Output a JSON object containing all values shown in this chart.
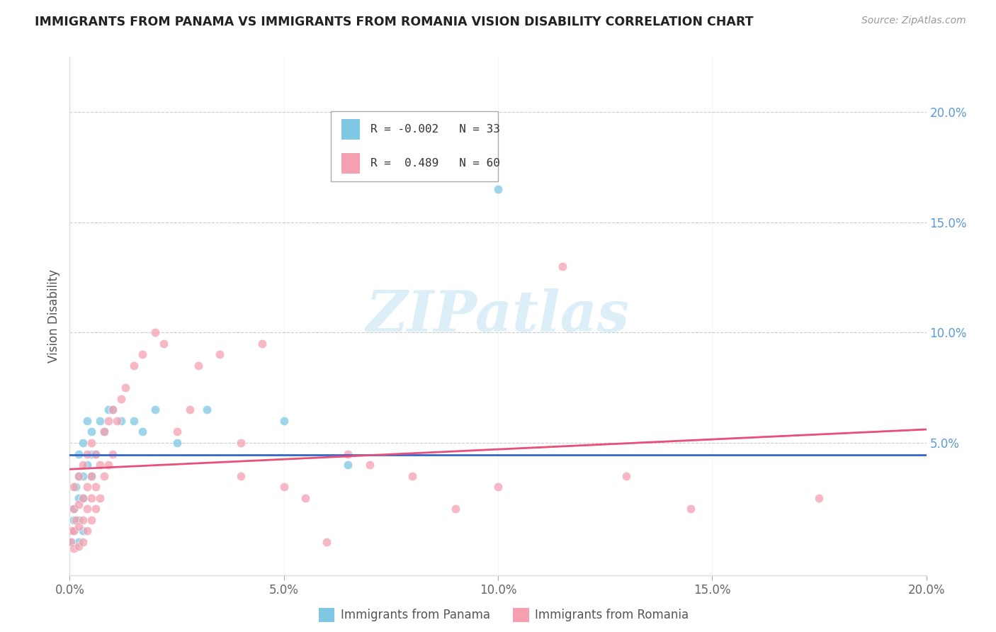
{
  "title": "IMMIGRANTS FROM PANAMA VS IMMIGRANTS FROM ROMANIA VISION DISABILITY CORRELATION CHART",
  "source": "Source: ZipAtlas.com",
  "ylabel": "Vision Disability",
  "xlim": [
    0.0,
    0.2
  ],
  "ylim": [
    -0.01,
    0.225
  ],
  "x_ticks": [
    0.0,
    0.05,
    0.1,
    0.15,
    0.2
  ],
  "x_tick_labels": [
    "0.0%",
    "5.0%",
    "10.0%",
    "15.0%",
    "20.0%"
  ],
  "y_ticks_right": [
    0.0,
    0.05,
    0.1,
    0.15,
    0.2
  ],
  "y_tick_labels_right": [
    "",
    "5.0%",
    "10.0%",
    "15.0%",
    "20.0%"
  ],
  "legend_entry1": "R = -0.002   N = 33",
  "legend_entry2": "R =  0.489   N = 60",
  "legend_label1": "Immigrants from Panama",
  "legend_label2": "Immigrants from Romania",
  "color_panama": "#7ec8e3",
  "color_romania": "#f4a0b0",
  "color_panama_line": "#3366cc",
  "color_romania_line": "#e8507a",
  "watermark": "ZIPatlas",
  "panama_R": -0.002,
  "romania_R": 0.489,
  "panama_x": [
    0.0005,
    0.001,
    0.001,
    0.001,
    0.0015,
    0.002,
    0.002,
    0.002,
    0.002,
    0.002,
    0.003,
    0.003,
    0.003,
    0.003,
    0.004,
    0.004,
    0.005,
    0.005,
    0.005,
    0.006,
    0.007,
    0.008,
    0.009,
    0.01,
    0.012,
    0.015,
    0.017,
    0.02,
    0.025,
    0.032,
    0.05,
    0.065,
    0.1
  ],
  "panama_y": [
    0.005,
    0.01,
    0.015,
    0.02,
    0.03,
    0.005,
    0.015,
    0.025,
    0.035,
    0.045,
    0.01,
    0.025,
    0.035,
    0.05,
    0.04,
    0.06,
    0.035,
    0.045,
    0.055,
    0.045,
    0.06,
    0.055,
    0.065,
    0.065,
    0.06,
    0.06,
    0.055,
    0.065,
    0.05,
    0.065,
    0.06,
    0.04,
    0.165
  ],
  "romania_x": [
    0.0003,
    0.0005,
    0.001,
    0.001,
    0.001,
    0.001,
    0.0015,
    0.002,
    0.002,
    0.002,
    0.002,
    0.003,
    0.003,
    0.003,
    0.003,
    0.004,
    0.004,
    0.004,
    0.004,
    0.005,
    0.005,
    0.005,
    0.005,
    0.006,
    0.006,
    0.006,
    0.007,
    0.007,
    0.008,
    0.008,
    0.009,
    0.009,
    0.01,
    0.01,
    0.011,
    0.012,
    0.013,
    0.015,
    0.017,
    0.02,
    0.022,
    0.025,
    0.028,
    0.03,
    0.035,
    0.04,
    0.04,
    0.045,
    0.05,
    0.055,
    0.06,
    0.065,
    0.07,
    0.08,
    0.09,
    0.1,
    0.115,
    0.13,
    0.145,
    0.175
  ],
  "romania_y": [
    0.005,
    0.01,
    0.002,
    0.01,
    0.02,
    0.03,
    0.015,
    0.003,
    0.012,
    0.022,
    0.035,
    0.005,
    0.015,
    0.025,
    0.04,
    0.01,
    0.02,
    0.03,
    0.045,
    0.015,
    0.025,
    0.035,
    0.05,
    0.02,
    0.03,
    0.045,
    0.025,
    0.04,
    0.035,
    0.055,
    0.04,
    0.06,
    0.045,
    0.065,
    0.06,
    0.07,
    0.075,
    0.085,
    0.09,
    0.1,
    0.095,
    0.055,
    0.065,
    0.085,
    0.09,
    0.035,
    0.05,
    0.095,
    0.03,
    0.025,
    0.005,
    0.045,
    0.04,
    0.035,
    0.02,
    0.03,
    0.13,
    0.035,
    0.02,
    0.025
  ]
}
